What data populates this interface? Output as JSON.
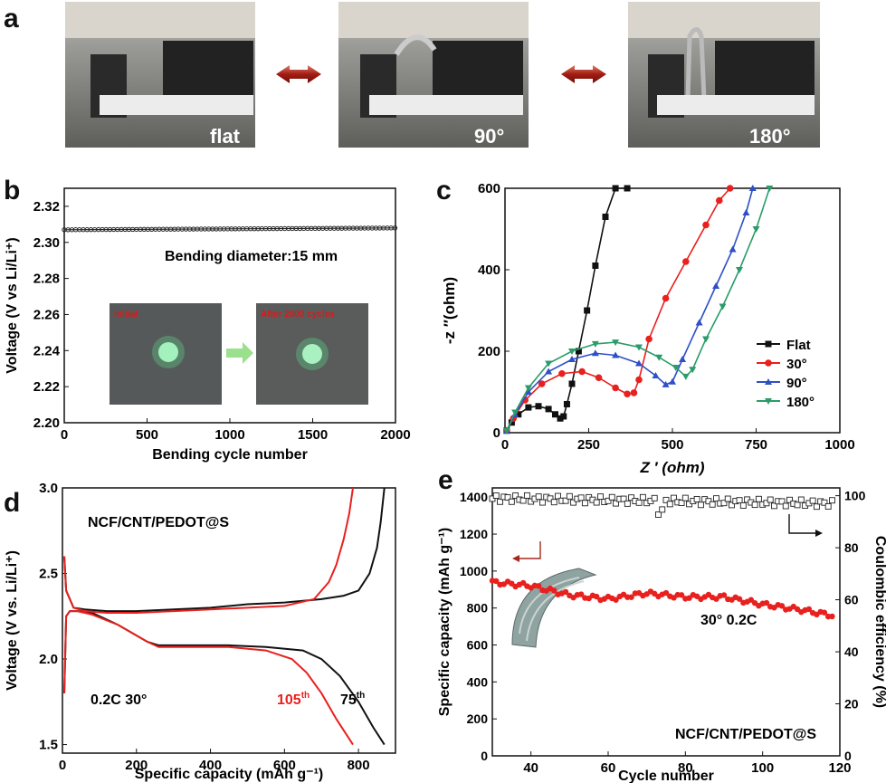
{
  "panels": {
    "a": "a",
    "b": "b",
    "c": "c",
    "d": "d",
    "e": "e"
  },
  "photos": {
    "flat": "flat",
    "deg90": "90°",
    "deg180": "180°"
  },
  "inset_b": {
    "left": "Initial",
    "right": "After 2000 cycles"
  },
  "chart_data": [
    {
      "id": "b",
      "type": "line",
      "xlabel": "Bending cycle number",
      "ylabel": "Voltage (V vs Li/Li⁺)",
      "xlim": [
        0,
        2000
      ],
      "ylim": [
        2.2,
        2.33
      ],
      "xticks": [
        "0",
        "500",
        "1000",
        "1500",
        "2000"
      ],
      "yticks": [
        "2.20",
        "2.22",
        "2.24",
        "2.26",
        "2.28",
        "2.30",
        "2.32"
      ],
      "annotation": "Bending diameter:15 mm",
      "series": [
        {
          "x": [
            0,
            2000
          ],
          "y": [
            2.307,
            2.308
          ]
        }
      ]
    },
    {
      "id": "c",
      "type": "line",
      "xlabel": "Z ′ (ohm)",
      "ylabel": "-z ″(ohm)",
      "xlim": [
        0,
        1000
      ],
      "ylim": [
        0,
        600
      ],
      "xticks": [
        "0",
        "250",
        "500",
        "750",
        "1000"
      ],
      "yticks": [
        "0",
        "200",
        "400",
        "600"
      ],
      "legend": "center-right",
      "series": [
        {
          "name": "Flat",
          "color": "#111111",
          "marker": "square",
          "x": [
            5,
            20,
            40,
            70,
            100,
            130,
            150,
            165,
            175,
            185,
            200,
            220,
            245,
            270,
            300,
            330,
            365
          ],
          "y": [
            5,
            25,
            45,
            62,
            65,
            58,
            45,
            35,
            40,
            70,
            120,
            200,
            300,
            410,
            530,
            600,
            600
          ]
        },
        {
          "name": "30°",
          "color": "#e8201e",
          "marker": "circle",
          "x": [
            5,
            25,
            60,
            110,
            170,
            230,
            280,
            330,
            365,
            385,
            400,
            430,
            480,
            540,
            600,
            640,
            672
          ],
          "y": [
            5,
            35,
            80,
            120,
            145,
            150,
            135,
            110,
            95,
            98,
            130,
            230,
            330,
            420,
            510,
            570,
            600
          ]
        },
        {
          "name": "90°",
          "color": "#2e4fc7",
          "marker": "triangle",
          "x": [
            5,
            30,
            70,
            130,
            200,
            270,
            330,
            400,
            450,
            480,
            500,
            530,
            580,
            630,
            680,
            720,
            740
          ],
          "y": [
            5,
            45,
            100,
            150,
            180,
            195,
            190,
            170,
            140,
            118,
            125,
            180,
            270,
            360,
            450,
            540,
            600
          ]
        },
        {
          "name": "180°",
          "color": "#2a9c6a",
          "marker": "triangle-down",
          "x": [
            5,
            30,
            70,
            130,
            200,
            270,
            330,
            400,
            460,
            510,
            540,
            560,
            600,
            650,
            700,
            750,
            790
          ],
          "y": [
            5,
            50,
            110,
            170,
            200,
            218,
            222,
            210,
            185,
            160,
            138,
            155,
            230,
            310,
            400,
            500,
            600
          ]
        }
      ]
    },
    {
      "id": "d",
      "type": "line",
      "xlabel": "Specific capacity (mAh g⁻¹)",
      "ylabel": "Voltage (V vs. Li/Li⁺)",
      "xlim": [
        0,
        900
      ],
      "ylim": [
        1.45,
        3.0
      ],
      "xticks": [
        "0",
        "200",
        "400",
        "600",
        "800"
      ],
      "yticks": [
        "1.5",
        "2.0",
        "2.5",
        "3.0"
      ],
      "text": {
        "sample": "NCF/CNT/PEDOT@S",
        "cond": "0.2C   30°",
        "c105": "105",
        "c75": "75",
        "th": "th"
      },
      "series": [
        {
          "name": "75th",
          "color": "#111111",
          "x": [
            [
              5,
              10,
              20,
              40,
              80,
              150,
              230,
              260,
              350,
              450,
              550,
              650,
              700,
              750,
              800,
              840,
              870
            ],
            [
              5,
              10,
              30,
              60,
              120,
              200,
              300,
              400,
              500,
              600,
              700,
              760,
              800,
              830,
              850,
              860,
              870
            ]
          ],
          "y": [
            [
              1.8,
              2.25,
              2.28,
              2.28,
              2.27,
              2.2,
              2.1,
              2.08,
              2.08,
              2.08,
              2.07,
              2.05,
              2.0,
              1.9,
              1.75,
              1.6,
              1.5
            ],
            [
              2.6,
              2.4,
              2.3,
              2.29,
              2.28,
              2.28,
              2.29,
              2.3,
              2.32,
              2.33,
              2.35,
              2.37,
              2.4,
              2.5,
              2.65,
              2.8,
              3.0
            ]
          ]
        },
        {
          "name": "105th",
          "color": "#e8201e",
          "x": [
            [
              5,
              10,
              20,
              40,
              80,
              150,
              230,
              260,
              350,
              450,
              550,
              620,
              660,
              700,
              740,
              770,
              785
            ],
            [
              5,
              10,
              30,
              60,
              120,
              200,
              300,
              400,
              500,
              600,
              680,
              720,
              740,
              760,
              775,
              785
            ]
          ],
          "y": [
            [
              1.8,
              2.25,
              2.28,
              2.28,
              2.26,
              2.2,
              2.1,
              2.07,
              2.07,
              2.07,
              2.05,
              2.0,
              1.92,
              1.8,
              1.65,
              1.55,
              1.5
            ],
            [
              2.6,
              2.4,
              2.3,
              2.28,
              2.27,
              2.27,
              2.28,
              2.29,
              2.3,
              2.31,
              2.35,
              2.45,
              2.55,
              2.7,
              2.85,
              3.0
            ]
          ]
        }
      ]
    },
    {
      "id": "e",
      "type": "scatter",
      "xlabel": "Cycle number",
      "ylabel": "Specific capacity (mAh g⁻¹)",
      "y2label": "Coulombic efficiency (%)",
      "xlim": [
        30,
        120
      ],
      "ylim": [
        0,
        1450
      ],
      "y2lim": [
        0,
        103
      ],
      "xticks": [
        "40",
        "60",
        "80",
        "100",
        "120"
      ],
      "yticks": [
        "0",
        "200",
        "400",
        "600",
        "800",
        "1000",
        "1200",
        "1400"
      ],
      "y2ticks": [
        "0",
        "20",
        "40",
        "60",
        "80",
        "100"
      ],
      "text": {
        "cond": "30°  0.2C",
        "sample": "NCF/CNT/PEDOT@S"
      },
      "series": [
        {
          "name": "capacity",
          "color": "#e8201e",
          "x": [
            30,
            40,
            50,
            60,
            70,
            80,
            90,
            100,
            110,
            118
          ],
          "y": [
            940,
            920,
            870,
            850,
            880,
            860,
            860,
            820,
            790,
            760
          ]
        },
        {
          "name": "efficiency",
          "color": "#222222",
          "x": [
            30,
            118
          ],
          "y": [
            99,
            97
          ]
        }
      ]
    }
  ]
}
